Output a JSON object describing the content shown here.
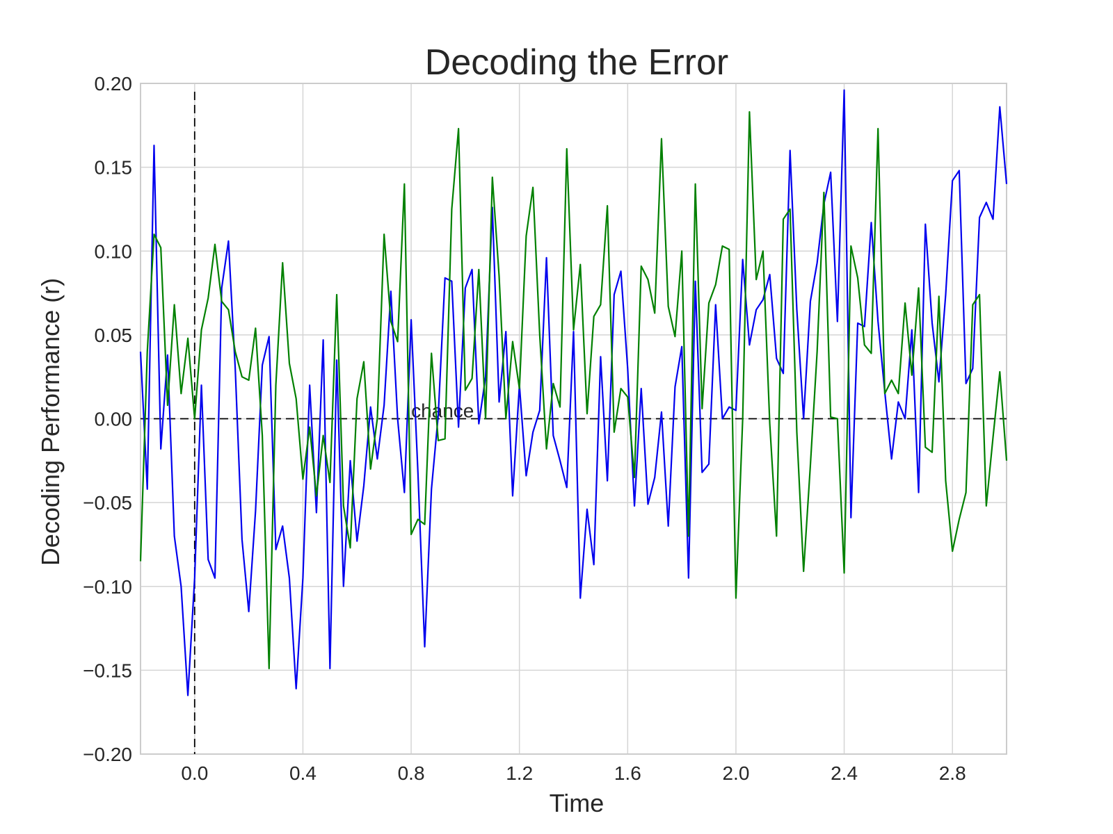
{
  "chart_data": {
    "type": "line",
    "title": "Decoding the Error",
    "xlabel": "Time",
    "ylabel": "Decoding Performance (r)",
    "xlim": [
      -0.2,
      3.0
    ],
    "ylim": [
      -0.2,
      0.2
    ],
    "xticks": [
      0.0,
      0.4,
      0.8,
      1.2,
      1.6,
      2.0,
      2.4,
      2.8
    ],
    "xtick_labels": [
      "0.0",
      "0.4",
      "0.8",
      "1.2",
      "1.6",
      "2.0",
      "2.4",
      "2.8"
    ],
    "yticks": [
      0.2,
      0.15,
      0.1,
      0.05,
      0.0,
      -0.05,
      -0.1,
      -0.15,
      -0.2
    ],
    "ytick_labels": [
      "0.20",
      "0.15",
      "0.10",
      "0.05",
      "0.00",
      "−0.05",
      "−0.10",
      "−0.15",
      "−0.20"
    ],
    "grid": true,
    "background": "#ffffff",
    "grid_color": "#d5d5d5",
    "chance_line": {
      "y": 0.0,
      "label": "chance",
      "label_x": 0.8,
      "color": "#000000",
      "style": "dashed"
    },
    "event_line": {
      "x": 0.0,
      "color": "#000000",
      "style": "dashed"
    },
    "x": [
      -0.2,
      -0.175,
      -0.15,
      -0.125,
      -0.1,
      -0.075,
      -0.05,
      -0.025,
      0.0,
      0.025,
      0.05,
      0.075,
      0.1,
      0.125,
      0.15,
      0.175,
      0.2,
      0.225,
      0.25,
      0.275,
      0.3,
      0.325,
      0.35,
      0.375,
      0.4,
      0.425,
      0.45,
      0.475,
      0.5,
      0.525,
      0.55,
      0.575,
      0.6,
      0.625,
      0.65,
      0.675,
      0.7,
      0.725,
      0.75,
      0.775,
      0.8,
      0.825,
      0.85,
      0.875,
      0.9,
      0.925,
      0.95,
      0.975,
      1.0,
      1.025,
      1.05,
      1.075,
      1.1,
      1.125,
      1.15,
      1.175,
      1.2,
      1.225,
      1.25,
      1.275,
      1.3,
      1.325,
      1.35,
      1.375,
      1.4,
      1.425,
      1.45,
      1.475,
      1.5,
      1.525,
      1.55,
      1.575,
      1.6,
      1.625,
      1.65,
      1.675,
      1.7,
      1.725,
      1.75,
      1.775,
      1.8,
      1.825,
      1.85,
      1.875,
      1.9,
      1.925,
      1.95,
      1.975,
      2.0,
      2.025,
      2.05,
      2.075,
      2.1,
      2.125,
      2.15,
      2.175,
      2.2,
      2.225,
      2.25,
      2.275,
      2.3,
      2.325,
      2.35,
      2.375,
      2.4,
      2.425,
      2.45,
      2.475,
      2.5,
      2.525,
      2.55,
      2.575,
      2.6,
      2.625,
      2.65,
      2.675,
      2.7,
      2.725,
      2.75,
      2.775,
      2.8,
      2.825,
      2.85,
      2.875,
      2.9,
      2.925,
      2.95,
      2.975,
      3.0
    ],
    "series": [
      {
        "color": "#0000ee",
        "values": [
          0.04,
          -0.042,
          0.163,
          -0.018,
          0.038,
          -0.07,
          -0.1,
          -0.165,
          -0.095,
          0.02,
          -0.084,
          -0.095,
          0.078,
          0.106,
          0.03,
          -0.072,
          -0.115,
          -0.055,
          0.032,
          0.049,
          -0.078,
          -0.064,
          -0.095,
          -0.161,
          -0.095,
          0.02,
          -0.056,
          0.047,
          -0.149,
          0.035,
          -0.1,
          -0.025,
          -0.073,
          -0.04,
          0.007,
          -0.024,
          0.008,
          0.076,
          0.0,
          -0.044,
          0.059,
          -0.032,
          -0.136,
          -0.042,
          0.002,
          0.084,
          0.082,
          -0.005,
          0.078,
          0.089,
          -0.003,
          0.025,
          0.126,
          0.01,
          0.052,
          -0.046,
          0.02,
          -0.034,
          -0.008,
          0.005,
          0.096,
          -0.01,
          -0.025,
          -0.041,
          0.052,
          -0.107,
          -0.054,
          -0.087,
          0.037,
          -0.037,
          0.074,
          0.088,
          0.03,
          -0.052,
          0.018,
          -0.051,
          -0.035,
          0.004,
          -0.064,
          0.019,
          0.043,
          -0.095,
          0.082,
          -0.032,
          -0.027,
          0.068,
          0.0,
          0.007,
          0.005,
          0.095,
          0.044,
          0.065,
          0.071,
          0.086,
          0.036,
          0.027,
          0.16,
          0.065,
          0.0,
          0.07,
          0.093,
          0.128,
          0.147,
          0.058,
          0.196,
          -0.059,
          0.057,
          0.055,
          0.117,
          0.058,
          0.016,
          -0.024,
          0.01,
          0.0,
          0.053,
          -0.044,
          0.116,
          0.057,
          0.022,
          0.074,
          0.142,
          0.148,
          0.021,
          0.03,
          0.12,
          0.129,
          0.119,
          0.186,
          0.14
        ]
      },
      {
        "color": "#008000",
        "values": [
          -0.085,
          0.04,
          0.11,
          0.102,
          0.008,
          0.068,
          0.015,
          0.048,
          0.0,
          0.053,
          0.072,
          0.104,
          0.07,
          0.065,
          0.04,
          0.025,
          0.023,
          0.054,
          -0.01,
          -0.149,
          0.02,
          0.093,
          0.033,
          0.012,
          -0.036,
          -0.005,
          -0.046,
          -0.01,
          -0.038,
          0.074,
          -0.052,
          -0.077,
          0.012,
          0.034,
          -0.03,
          0.0,
          0.11,
          0.058,
          0.046,
          0.14,
          -0.069,
          -0.06,
          -0.063,
          0.039,
          -0.013,
          -0.012,
          0.125,
          0.173,
          0.017,
          0.024,
          0.089,
          0.0,
          0.144,
          0.085,
          0.0,
          0.046,
          0.018,
          0.109,
          0.138,
          0.05,
          -0.018,
          0.021,
          0.007,
          0.161,
          0.053,
          0.092,
          0.003,
          0.061,
          0.068,
          0.127,
          -0.008,
          0.018,
          0.013,
          -0.035,
          0.091,
          0.083,
          0.063,
          0.167,
          0.067,
          0.049,
          0.1,
          -0.07,
          0.14,
          0.006,
          0.069,
          0.08,
          0.103,
          0.101,
          -0.107,
          0.0,
          0.183,
          0.083,
          0.1,
          -0.003,
          -0.07,
          0.119,
          0.125,
          -0.008,
          -0.091,
          -0.028,
          0.04,
          0.135,
          0.001,
          0.0,
          -0.092,
          0.103,
          0.084,
          0.044,
          0.039,
          0.173,
          0.015,
          0.023,
          0.015,
          0.069,
          0.026,
          0.078,
          -0.017,
          -0.02,
          0.073,
          -0.037,
          -0.079,
          -0.06,
          -0.044,
          0.068,
          0.074,
          -0.052,
          -0.011,
          0.028,
          -0.025
        ]
      }
    ]
  }
}
